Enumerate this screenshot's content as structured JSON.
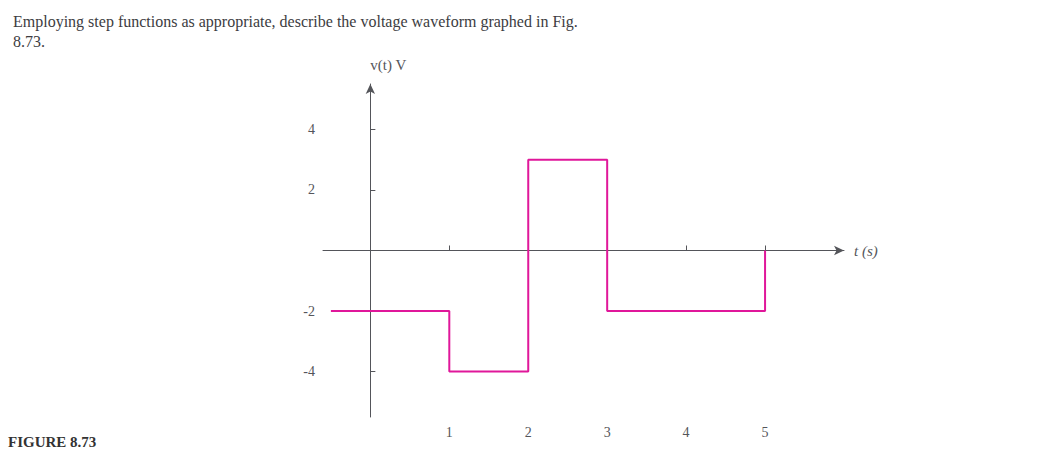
{
  "chart_data": {
    "type": "line",
    "title": "Employing step functions as appropriate, describe the voltage waveform graphed in Fig.\n8.73.",
    "ylabel": "v(t) V",
    "xlabel": "t (s)",
    "annotations": [
      "FIGURE 8.73"
    ],
    "x": [
      -0.5,
      1.0,
      1.0,
      2.0,
      2.0,
      3.0,
      3.0,
      5.0,
      5.0
    ],
    "values": [
      -2,
      -2,
      -4,
      -4,
      3,
      3,
      -2,
      -2,
      0
    ],
    "color": "#E0179A",
    "xlim": [
      -0.6,
      6.0
    ],
    "ylim": [
      -5.5,
      5.5
    ],
    "xticks": [
      1,
      2,
      3,
      4,
      5
    ],
    "yticks": [
      -4,
      -2,
      2,
      4
    ],
    "grid": false
  }
}
